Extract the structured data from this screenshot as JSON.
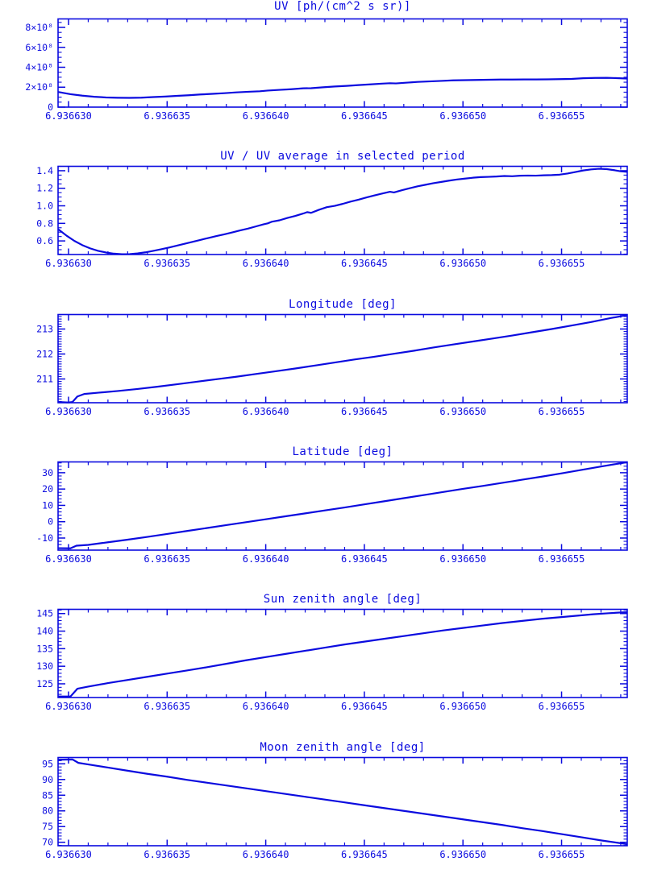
{
  "meta": {
    "line_color": "#0b0bdf",
    "background_color": "#ffffff",
    "x_axis": {
      "note": "x values are 6.9366 + t*1e-6 ; t is the offset stored in every point",
      "xlim_t": [
        29.47,
        58.33
      ],
      "tick_t": [
        30,
        35,
        40,
        45,
        50,
        55
      ],
      "tick_labels": [
        "6.936630",
        "6.936635",
        "6.936640",
        "6.936645",
        "6.936650",
        "6.936655"
      ],
      "minor_step_t": 1
    }
  },
  "chart_data": [
    {
      "id": "uv",
      "type": "line",
      "title": "UV [ph/(cm^2 s sr)]",
      "xlabel": "",
      "ylabel": "",
      "ylim": [
        0,
        885000000.0
      ],
      "yticks": {
        "values": [
          0,
          200000000.0,
          400000000.0,
          600000000.0,
          800000000.0
        ],
        "labels": [
          "0",
          "2×10⁸",
          "4×10⁸",
          "6×10⁸",
          "8×10⁸"
        ],
        "minor_step": 50000000.0
      },
      "points": [
        [
          29.5,
          151000000.0
        ],
        [
          30.1,
          130000000.0
        ],
        [
          30.7,
          115000000.0
        ],
        [
          31.3,
          104000000.0
        ],
        [
          31.9,
          97000000.0
        ],
        [
          32.5,
          94000000.0
        ],
        [
          33.1,
          93000000.0
        ],
        [
          33.7,
          95000000.0
        ],
        [
          34.3,
          101000000.0
        ],
        [
          34.9,
          106000000.0
        ],
        [
          35.5,
          113000000.0
        ],
        [
          36.1,
          119000000.0
        ],
        [
          36.7,
          127000000.0
        ],
        [
          37.3,
          133000000.0
        ],
        [
          37.9,
          140000000.0
        ],
        [
          38.5,
          148000000.0
        ],
        [
          39.1,
          154000000.0
        ],
        [
          39.7,
          159000000.0
        ],
        [
          40.1,
          166000000.0
        ],
        [
          40.7,
          173000000.0
        ],
        [
          41.3,
          180000000.0
        ],
        [
          41.9,
          189000000.0
        ],
        [
          42.3,
          190000000.0
        ],
        [
          42.9,
          199000000.0
        ],
        [
          43.5,
          207000000.0
        ],
        [
          44.1,
          213000000.0
        ],
        [
          44.7,
          221000000.0
        ],
        [
          45.3,
          228000000.0
        ],
        [
          45.9,
          236000000.0
        ],
        [
          46.3,
          240000000.0
        ],
        [
          46.6,
          238000000.0
        ],
        [
          47.1,
          245000000.0
        ],
        [
          47.7,
          253000000.0
        ],
        [
          48.3,
          258000000.0
        ],
        [
          48.9,
          263000000.0
        ],
        [
          49.5,
          269000000.0
        ],
        [
          50.1,
          271000000.0
        ],
        [
          50.7,
          273000000.0
        ],
        [
          51.3,
          275000000.0
        ],
        [
          51.9,
          277000000.0
        ],
        [
          52.5,
          277000000.0
        ],
        [
          53.1,
          278000000.0
        ],
        [
          53.7,
          278000000.0
        ],
        [
          54.3,
          279000000.0
        ],
        [
          54.9,
          281000000.0
        ],
        [
          55.5,
          283000000.0
        ],
        [
          56.1,
          290000000.0
        ],
        [
          56.7,
          293000000.0
        ],
        [
          57.3,
          294000000.0
        ],
        [
          57.8,
          291000000.0
        ],
        [
          58.3,
          287000000.0
        ]
      ]
    },
    {
      "id": "uv-ratio",
      "type": "line",
      "title": "UV / UV average in selected period",
      "xlabel": "",
      "ylabel": "",
      "ylim": [
        0.445,
        1.45
      ],
      "yticks": {
        "values": [
          0.6,
          0.8,
          1.0,
          1.2,
          1.4
        ],
        "labels": [
          "0.6",
          "0.8",
          "1.0",
          "1.2",
          "1.4"
        ],
        "minor_step": 0.05
      },
      "points": [
        [
          29.5,
          0.73
        ],
        [
          29.9,
          0.66
        ],
        [
          30.3,
          0.6
        ],
        [
          30.7,
          0.552
        ],
        [
          31.1,
          0.515
        ],
        [
          31.5,
          0.487
        ],
        [
          31.9,
          0.468
        ],
        [
          32.3,
          0.455
        ],
        [
          32.7,
          0.449
        ],
        [
          33.1,
          0.45
        ],
        [
          33.5,
          0.458
        ],
        [
          33.9,
          0.47
        ],
        [
          34.3,
          0.487
        ],
        [
          34.7,
          0.505
        ],
        [
          35.1,
          0.525
        ],
        [
          35.5,
          0.547
        ],
        [
          35.9,
          0.568
        ],
        [
          36.3,
          0.59
        ],
        [
          36.7,
          0.612
        ],
        [
          37.1,
          0.634
        ],
        [
          37.5,
          0.655
        ],
        [
          37.9,
          0.675
        ],
        [
          38.3,
          0.697
        ],
        [
          38.7,
          0.72
        ],
        [
          39.1,
          0.74
        ],
        [
          39.5,
          0.765
        ],
        [
          39.9,
          0.79
        ],
        [
          40.1,
          0.8
        ],
        [
          40.3,
          0.818
        ],
        [
          40.7,
          0.835
        ],
        [
          41.1,
          0.862
        ],
        [
          41.5,
          0.885
        ],
        [
          41.9,
          0.912
        ],
        [
          42.1,
          0.928
        ],
        [
          42.3,
          0.92
        ],
        [
          42.7,
          0.955
        ],
        [
          43.1,
          0.985
        ],
        [
          43.5,
          1.0
        ],
        [
          43.9,
          1.022
        ],
        [
          44.3,
          1.048
        ],
        [
          44.7,
          1.07
        ],
        [
          45.1,
          1.095
        ],
        [
          45.5,
          1.118
        ],
        [
          45.9,
          1.14
        ],
        [
          46.3,
          1.16
        ],
        [
          46.5,
          1.152
        ],
        [
          46.9,
          1.178
        ],
        [
          47.3,
          1.2
        ],
        [
          47.7,
          1.222
        ],
        [
          48.1,
          1.24
        ],
        [
          48.5,
          1.258
        ],
        [
          48.9,
          1.272
        ],
        [
          49.3,
          1.287
        ],
        [
          49.7,
          1.3
        ],
        [
          50.1,
          1.31
        ],
        [
          50.5,
          1.32
        ],
        [
          50.9,
          1.327
        ],
        [
          51.3,
          1.33
        ],
        [
          51.7,
          1.334
        ],
        [
          52.1,
          1.34
        ],
        [
          52.5,
          1.337
        ],
        [
          52.9,
          1.343
        ],
        [
          53.3,
          1.345
        ],
        [
          53.7,
          1.344
        ],
        [
          54.1,
          1.348
        ],
        [
          54.5,
          1.35
        ],
        [
          54.9,
          1.355
        ],
        [
          55.3,
          1.368
        ],
        [
          55.7,
          1.385
        ],
        [
          56.1,
          1.403
        ],
        [
          56.5,
          1.415
        ],
        [
          56.9,
          1.422
        ],
        [
          57.3,
          1.418
        ],
        [
          57.7,
          1.405
        ],
        [
          58.0,
          1.393
        ],
        [
          58.3,
          1.388
        ]
      ]
    },
    {
      "id": "longitude",
      "type": "line",
      "title": "Longitude [deg]",
      "xlabel": "",
      "ylabel": "",
      "ylim": [
        210.05,
        213.58
      ],
      "yticks": {
        "values": [
          211,
          212,
          213
        ],
        "labels": [
          "211",
          "212",
          "213"
        ],
        "minor_step": 0.1
      },
      "points": [
        [
          29.5,
          210.08
        ],
        [
          30.0,
          210.06
        ],
        [
          30.2,
          210.08
        ],
        [
          30.45,
          210.3
        ],
        [
          30.8,
          210.4
        ],
        [
          31.5,
          210.45
        ],
        [
          32.5,
          210.52
        ],
        [
          33.5,
          210.6
        ],
        [
          34.5,
          210.69
        ],
        [
          35.5,
          210.79
        ],
        [
          36.5,
          210.89
        ],
        [
          37.5,
          210.99
        ],
        [
          38.5,
          211.09
        ],
        [
          39.5,
          211.2
        ],
        [
          40.5,
          211.31
        ],
        [
          41.5,
          211.42
        ],
        [
          42.5,
          211.54
        ],
        [
          43.5,
          211.66
        ],
        [
          44.5,
          211.78
        ],
        [
          45.5,
          211.89
        ],
        [
          46.5,
          212.01
        ],
        [
          47.5,
          212.13
        ],
        [
          48.5,
          212.26
        ],
        [
          49.5,
          212.38
        ],
        [
          50.5,
          212.5
        ],
        [
          51.5,
          212.62
        ],
        [
          52.5,
          212.74
        ],
        [
          53.5,
          212.87
        ],
        [
          54.5,
          213.0
        ],
        [
          55.5,
          213.14
        ],
        [
          56.5,
          213.28
        ],
        [
          57.5,
          213.44
        ],
        [
          58.0,
          213.51
        ],
        [
          58.3,
          213.56
        ]
      ]
    },
    {
      "id": "latitude",
      "type": "line",
      "title": "Latitude [deg]",
      "xlabel": "",
      "ylabel": "",
      "ylim": [
        -17.4,
        36.6
      ],
      "yticks": {
        "values": [
          -10,
          0,
          10,
          20,
          30
        ],
        "labels": [
          "-10",
          "0",
          "10",
          "20",
          "30"
        ],
        "minor_step": 2
      },
      "points": [
        [
          29.5,
          -16.2
        ],
        [
          30.1,
          -16.3
        ],
        [
          30.4,
          -14.7
        ],
        [
          31,
          -14.2
        ],
        [
          32,
          -12.6
        ],
        [
          33,
          -11.0
        ],
        [
          34,
          -9.3
        ],
        [
          35,
          -7.5
        ],
        [
          36,
          -5.7
        ],
        [
          37,
          -3.9
        ],
        [
          38,
          -2.1
        ],
        [
          39,
          -0.3
        ],
        [
          40,
          1.5
        ],
        [
          41,
          3.3
        ],
        [
          42,
          5.1
        ],
        [
          43,
          6.9
        ],
        [
          44,
          8.7
        ],
        [
          45,
          10.6
        ],
        [
          46,
          12.5
        ],
        [
          47,
          14.4
        ],
        [
          48,
          16.3
        ],
        [
          49,
          18.2
        ],
        [
          50,
          20.1
        ],
        [
          51,
          21.9
        ],
        [
          52,
          23.8
        ],
        [
          53,
          25.7
        ],
        [
          54,
          27.6
        ],
        [
          55,
          29.6
        ],
        [
          56,
          31.7
        ],
        [
          57,
          33.8
        ],
        [
          58,
          35.8
        ],
        [
          58.3,
          36.4
        ]
      ]
    },
    {
      "id": "sun-zenith",
      "type": "line",
      "title": "Sun zenith angle [deg]",
      "xlabel": "",
      "ylabel": "",
      "ylim": [
        121.1,
        146.2
      ],
      "yticks": {
        "values": [
          125,
          130,
          135,
          140,
          145
        ],
        "labels": [
          "125",
          "130",
          "135",
          "140",
          "145"
        ],
        "minor_step": 1
      },
      "points": [
        [
          29.5,
          121.4
        ],
        [
          30.1,
          121.4
        ],
        [
          30.45,
          123.6
        ],
        [
          31,
          124.2
        ],
        [
          32,
          125.2
        ],
        [
          33,
          126.1
        ],
        [
          34,
          127.0
        ],
        [
          35,
          127.9
        ],
        [
          36,
          128.8
        ],
        [
          37,
          129.7
        ],
        [
          38,
          130.7
        ],
        [
          39,
          131.7
        ],
        [
          40,
          132.6
        ],
        [
          41,
          133.5
        ],
        [
          42,
          134.4
        ],
        [
          43,
          135.3
        ],
        [
          44,
          136.2
        ],
        [
          45,
          137.0
        ],
        [
          46,
          137.8
        ],
        [
          47,
          138.6
        ],
        [
          48,
          139.4
        ],
        [
          49,
          140.2
        ],
        [
          50,
          140.9
        ],
        [
          51,
          141.6
        ],
        [
          52,
          142.3
        ],
        [
          53,
          142.9
        ],
        [
          54,
          143.5
        ],
        [
          55,
          144.0
        ],
        [
          55.8,
          144.4
        ],
        [
          56.6,
          144.8
        ],
        [
          57.4,
          145.1
        ],
        [
          58.3,
          145.4
        ]
      ]
    },
    {
      "id": "moon-zenith",
      "type": "line",
      "title": "Moon zenith angle [deg]",
      "xlabel": "",
      "ylabel": "",
      "ylim": [
        68.9,
        97.0
      ],
      "yticks": {
        "values": [
          70,
          75,
          80,
          85,
          90,
          95
        ],
        "labels": [
          "70",
          "75",
          "80",
          "85",
          "90",
          "95"
        ],
        "minor_step": 1
      },
      "points": [
        [
          29.5,
          96.3
        ],
        [
          30.2,
          96.4
        ],
        [
          30.5,
          95.3
        ],
        [
          31,
          94.8
        ],
        [
          32,
          93.8
        ],
        [
          33,
          92.8
        ],
        [
          34,
          91.8
        ],
        [
          35,
          90.9
        ],
        [
          36,
          89.9
        ],
        [
          37,
          89.0
        ],
        [
          38,
          88.1
        ],
        [
          39,
          87.2
        ],
        [
          40,
          86.3
        ],
        [
          41,
          85.4
        ],
        [
          42,
          84.5
        ],
        [
          43,
          83.6
        ],
        [
          44,
          82.7
        ],
        [
          45,
          81.8
        ],
        [
          46,
          80.9
        ],
        [
          47,
          80.0
        ],
        [
          48,
          79.1
        ],
        [
          49,
          78.2
        ],
        [
          50,
          77.3
        ],
        [
          51,
          76.4
        ],
        [
          52,
          75.5
        ],
        [
          53,
          74.5
        ],
        [
          54,
          73.6
        ],
        [
          55,
          72.6
        ],
        [
          56,
          71.6
        ],
        [
          57,
          70.6
        ],
        [
          58,
          69.7
        ],
        [
          58.3,
          69.4
        ]
      ]
    }
  ]
}
